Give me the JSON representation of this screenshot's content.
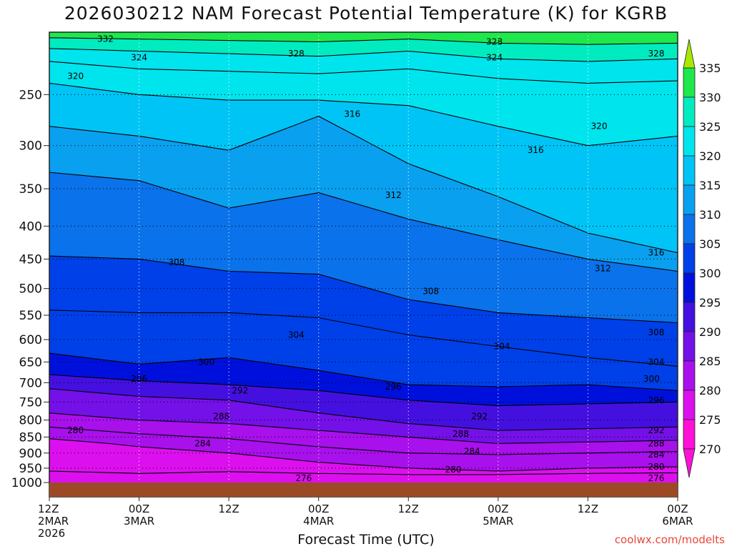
{
  "header": {
    "title": "2026030212 NAM Forecast Potential Temperature (K) for KGRB"
  },
  "footer": {
    "credit": "coolwx.com/modelts"
  },
  "chart_data": {
    "type": "contour",
    "title": "2026030212 NAM Forecast Potential Temperature (K) for KGRB",
    "xlabel": "Forecast Time (UTC)",
    "ylabel": "",
    "x_ticks": [
      {
        "hour": 0,
        "lines": [
          "12Z",
          "2MAR",
          "2026"
        ]
      },
      {
        "hour": 12,
        "lines": [
          "00Z",
          "3MAR"
        ]
      },
      {
        "hour": 24,
        "lines": [
          "12Z"
        ]
      },
      {
        "hour": 36,
        "lines": [
          "00Z",
          "4MAR"
        ]
      },
      {
        "hour": 48,
        "lines": [
          "12Z"
        ]
      },
      {
        "hour": 60,
        "lines": [
          "00Z",
          "5MAR"
        ]
      },
      {
        "hour": 72,
        "lines": [
          "12Z"
        ]
      },
      {
        "hour": 84,
        "lines": [
          "00Z",
          "6MAR"
        ]
      }
    ],
    "y_ticks": [
      250,
      300,
      350,
      400,
      450,
      500,
      550,
      600,
      650,
      700,
      750,
      800,
      850,
      900,
      950,
      1000
    ],
    "y_scale": "log-pressure",
    "ylim": [
      1000,
      200
    ],
    "xlim": [
      0,
      84
    ],
    "grid": true,
    "colorbar": {
      "ticks": [
        335,
        330,
        325,
        320,
        315,
        310,
        305,
        300,
        295,
        290,
        285,
        280,
        275,
        270
      ],
      "bands": [
        {
          "from": 335,
          "color": "#a8e800"
        },
        {
          "from": 330,
          "color": "#1ee84c"
        },
        {
          "from": 325,
          "color": "#00ecc0"
        },
        {
          "from": 320,
          "color": "#00e4ee"
        },
        {
          "from": 315,
          "color": "#00c4f6"
        },
        {
          "from": 310,
          "color": "#0aa0f0"
        },
        {
          "from": 305,
          "color": "#0a72ea"
        },
        {
          "from": 300,
          "color": "#0040e8"
        },
        {
          "from": 295,
          "color": "#0010dc"
        },
        {
          "from": 290,
          "color": "#4410e0"
        },
        {
          "from": 285,
          "color": "#7410e8"
        },
        {
          "from": 280,
          "color": "#a810ec"
        },
        {
          "from": 275,
          "color": "#dc10ee"
        },
        {
          "from": 270,
          "color": "#ff10d8"
        },
        {
          "from": 0,
          "color": "#ff10d8"
        }
      ]
    },
    "ground_color": "#9c4a26",
    "contours": [
      {
        "level": 276,
        "points": [
          [
            0,
            960
          ],
          [
            12,
            968
          ],
          [
            24,
            962
          ],
          [
            36,
            968
          ],
          [
            48,
            972
          ],
          [
            60,
            972
          ],
          [
            72,
            968
          ],
          [
            84,
            966
          ]
        ]
      },
      {
        "level": 280,
        "points": [
          [
            0,
            855
          ],
          [
            8,
            870
          ],
          [
            12,
            880
          ],
          [
            24,
            900
          ],
          [
            36,
            930
          ],
          [
            48,
            950
          ],
          [
            60,
            960
          ],
          [
            72,
            950
          ],
          [
            84,
            945
          ]
        ]
      },
      {
        "level": 284,
        "points": [
          [
            0,
            820
          ],
          [
            12,
            840
          ],
          [
            24,
            855
          ],
          [
            36,
            880
          ],
          [
            48,
            900
          ],
          [
            60,
            905
          ],
          [
            72,
            900
          ],
          [
            84,
            895
          ]
        ]
      },
      {
        "level": 288,
        "points": [
          [
            0,
            780
          ],
          [
            12,
            800
          ],
          [
            24,
            810
          ],
          [
            36,
            830
          ],
          [
            48,
            850
          ],
          [
            60,
            870
          ],
          [
            72,
            865
          ],
          [
            84,
            860
          ]
        ]
      },
      {
        "level": 292,
        "points": [
          [
            0,
            715
          ],
          [
            12,
            735
          ],
          [
            24,
            745
          ],
          [
            36,
            780
          ],
          [
            48,
            810
          ],
          [
            60,
            830
          ],
          [
            72,
            825
          ],
          [
            84,
            820
          ]
        ]
      },
      {
        "level": 296,
        "points": [
          [
            0,
            680
          ],
          [
            12,
            695
          ],
          [
            24,
            705
          ],
          [
            36,
            720
          ],
          [
            48,
            745
          ],
          [
            60,
            760
          ],
          [
            72,
            755
          ],
          [
            84,
            750
          ]
        ]
      },
      {
        "level": 300,
        "points": [
          [
            0,
            630
          ],
          [
            12,
            655
          ],
          [
            24,
            640
          ],
          [
            36,
            670
          ],
          [
            48,
            705
          ],
          [
            60,
            710
          ],
          [
            72,
            705
          ],
          [
            84,
            720
          ]
        ]
      },
      {
        "level": 304,
        "points": [
          [
            0,
            540
          ],
          [
            12,
            545
          ],
          [
            24,
            545
          ],
          [
            36,
            555
          ],
          [
            48,
            590
          ],
          [
            60,
            615
          ],
          [
            72,
            640
          ],
          [
            84,
            660
          ]
        ]
      },
      {
        "level": 308,
        "points": [
          [
            0,
            445
          ],
          [
            12,
            450
          ],
          [
            24,
            470
          ],
          [
            36,
            475
          ],
          [
            48,
            520
          ],
          [
            60,
            545
          ],
          [
            72,
            555
          ],
          [
            84,
            565
          ]
        ]
      },
      {
        "level": 312,
        "points": [
          [
            0,
            330
          ],
          [
            12,
            340
          ],
          [
            24,
            375
          ],
          [
            36,
            355
          ],
          [
            48,
            390
          ],
          [
            60,
            420
          ],
          [
            72,
            450
          ],
          [
            84,
            470
          ]
        ]
      },
      {
        "level": 316,
        "points": [
          [
            0,
            280
          ],
          [
            12,
            290
          ],
          [
            24,
            305
          ],
          [
            36,
            270
          ],
          [
            48,
            320
          ],
          [
            60,
            360
          ],
          [
            72,
            410
          ],
          [
            84,
            440
          ]
        ]
      },
      {
        "level": 320,
        "points": [
          [
            0,
            240
          ],
          [
            12,
            250
          ],
          [
            24,
            255
          ],
          [
            36,
            255
          ],
          [
            48,
            260
          ],
          [
            60,
            280
          ],
          [
            72,
            300
          ],
          [
            84,
            290
          ]
        ]
      },
      {
        "level": 324,
        "points": [
          [
            0,
            222
          ],
          [
            12,
            228
          ],
          [
            24,
            230
          ],
          [
            36,
            232
          ],
          [
            48,
            228
          ],
          [
            60,
            236
          ],
          [
            72,
            240
          ],
          [
            84,
            238
          ]
        ]
      },
      {
        "level": 328,
        "points": [
          [
            0,
            212
          ],
          [
            12,
            214
          ],
          [
            24,
            216
          ],
          [
            36,
            218
          ],
          [
            48,
            214
          ],
          [
            60,
            220
          ],
          [
            72,
            222
          ],
          [
            84,
            220
          ]
        ]
      },
      {
        "level": 332,
        "points": [
          [
            0,
            204
          ],
          [
            12,
            205
          ],
          [
            24,
            206
          ],
          [
            36,
            207
          ],
          [
            48,
            205
          ],
          [
            60,
            208
          ],
          [
            72,
            209
          ],
          [
            84,
            208
          ]
        ]
      }
    ],
    "contour_labels": [
      {
        "text": "332",
        "hour": 7.5,
        "p": 205
      },
      {
        "text": "324",
        "hour": 12,
        "p": 219
      },
      {
        "text": "328",
        "hour": 33,
        "p": 216
      },
      {
        "text": "328",
        "hour": 59.5,
        "p": 207
      },
      {
        "text": "324",
        "hour": 59.5,
        "p": 219
      },
      {
        "text": "328",
        "hour": 83,
        "p": 216
      },
      {
        "text": "320",
        "hour": 3.5,
        "p": 234
      },
      {
        "text": "316",
        "hour": 40.5,
        "p": 268
      },
      {
        "text": "320",
        "hour": 73.5,
        "p": 280
      },
      {
        "text": "316",
        "hour": 65,
        "p": 305
      },
      {
        "text": "312",
        "hour": 46,
        "p": 358
      },
      {
        "text": "316",
        "hour": 95,
        "p": 440
      },
      {
        "text": "308",
        "hour": 17,
        "p": 455
      },
      {
        "text": "312",
        "hour": 74,
        "p": 465
      },
      {
        "text": "308",
        "hour": 51,
        "p": 505
      },
      {
        "text": "308",
        "hour": 96,
        "p": 585
      },
      {
        "text": "304",
        "hour": 33,
        "p": 590
      },
      {
        "text": "304",
        "hour": 60.5,
        "p": 615
      },
      {
        "text": "300",
        "hour": 21,
        "p": 650
      },
      {
        "text": "304",
        "hour": 94.5,
        "p": 650
      },
      {
        "text": "296",
        "hour": 12,
        "p": 690
      },
      {
        "text": "300",
        "hour": 80.5,
        "p": 690
      },
      {
        "text": "292",
        "hour": 25.5,
        "p": 720
      },
      {
        "text": "296",
        "hour": 46,
        "p": 710
      },
      {
        "text": "296",
        "hour": 92,
        "p": 745
      },
      {
        "text": "288",
        "hour": 23,
        "p": 790
      },
      {
        "text": "292",
        "hour": 57.5,
        "p": 790
      },
      {
        "text": "280",
        "hour": 3.5,
        "p": 830
      },
      {
        "text": "292",
        "hour": 82,
        "p": 830
      },
      {
        "text": "288",
        "hour": 55,
        "p": 840
      },
      {
        "text": "284",
        "hour": 20.5,
        "p": 870
      },
      {
        "text": "288",
        "hour": 86,
        "p": 870
      },
      {
        "text": "284",
        "hour": 56.5,
        "p": 895
      },
      {
        "text": "284",
        "hour": 86,
        "p": 905
      },
      {
        "text": "280",
        "hour": 54,
        "p": 955
      },
      {
        "text": "280",
        "hour": 81.5,
        "p": 945
      },
      {
        "text": "276",
        "hour": 34,
        "p": 985
      },
      {
        "text": "276",
        "hour": 82.5,
        "p": 985
      }
    ]
  }
}
